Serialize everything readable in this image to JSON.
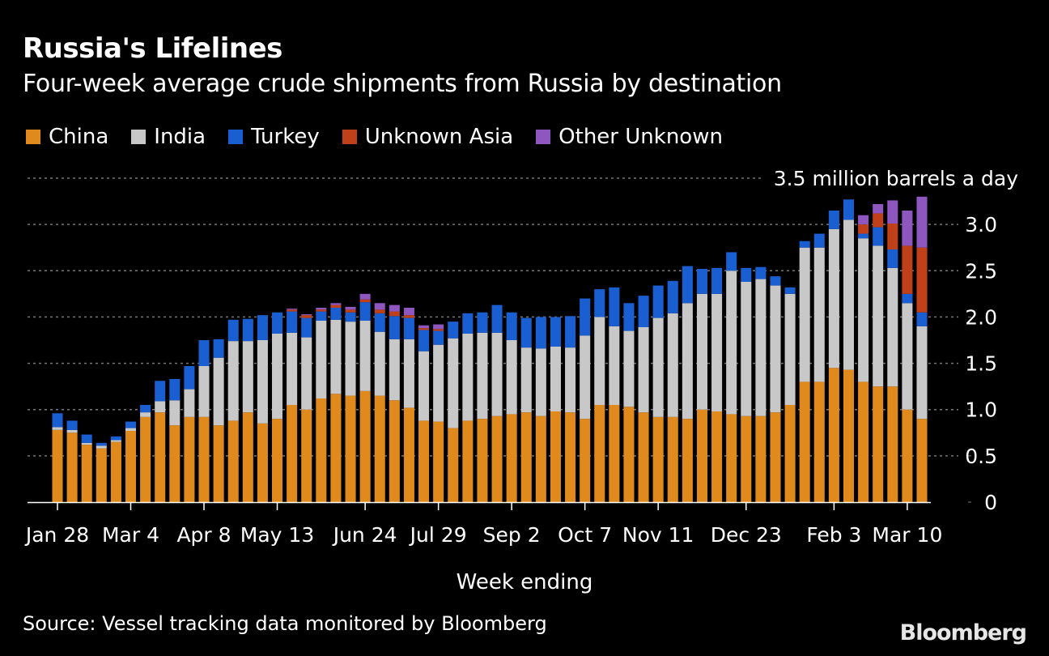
{
  "title": "Russia's Lifelines",
  "subtitle": "Four-week average crude shipments from Russia by destination",
  "source": "Source: Vessel tracking data monitored by Bloomberg",
  "brand": "Bloomberg",
  "colors": {
    "china": "#e08a1e",
    "india": "#c8c8c8",
    "turkey": "#1a5fd1",
    "unknown_asia": "#c0401a",
    "other_unknown": "#8e57c0",
    "grid": "#777777",
    "text": "#ffffff"
  },
  "chart_data": {
    "type": "bar",
    "stacked": true,
    "title": "Russia's Lifelines",
    "subtitle": "Four-week average crude shipments from Russia by destination",
    "xlabel": "Week ending",
    "ylabel": "",
    "unit_label": "3.5 million barrels a day",
    "ylim": [
      0,
      3.5
    ],
    "yticks": [
      0,
      0.5,
      1.0,
      1.5,
      2.0,
      2.5,
      3.0
    ],
    "ytick_labels": [
      "0",
      "0.5",
      "1.0",
      "1.5",
      "2.0",
      "2.5",
      "3.0"
    ],
    "grid": true,
    "legend_position": "top-left",
    "x_tick_labels": [
      {
        "index": 0,
        "label": "Jan 28"
      },
      {
        "index": 5,
        "label": "Mar 4"
      },
      {
        "index": 10,
        "label": "Apr 8"
      },
      {
        "index": 15,
        "label": "May 13"
      },
      {
        "index": 21,
        "label": "Jun 24"
      },
      {
        "index": 26,
        "label": "Jul 29"
      },
      {
        "index": 31,
        "label": "Sep 2"
      },
      {
        "index": 36,
        "label": "Oct 7"
      },
      {
        "index": 41,
        "label": "Nov 11"
      },
      {
        "index": 47,
        "label": "Dec 23"
      },
      {
        "index": 53,
        "label": "Feb 3"
      },
      {
        "index": 58,
        "label": "Mar 10"
      }
    ],
    "series": [
      {
        "name": "China",
        "key": "china",
        "values": [
          0.78,
          0.75,
          0.62,
          0.58,
          0.65,
          0.77,
          0.92,
          0.97,
          0.83,
          0.92,
          0.92,
          0.83,
          0.88,
          0.97,
          0.85,
          0.9,
          1.05,
          1.0,
          1.12,
          1.17,
          1.15,
          1.2,
          1.15,
          1.1,
          1.02,
          0.88,
          0.87,
          0.8,
          0.88,
          0.9,
          0.93,
          0.95,
          0.97,
          0.93,
          0.98,
          0.97,
          0.9,
          1.05,
          1.05,
          1.03,
          0.97,
          0.92,
          0.92,
          0.9,
          1.0,
          0.98,
          0.95,
          0.93,
          0.93,
          0.97,
          1.05,
          1.3,
          1.3,
          1.45,
          1.43,
          1.3,
          1.25,
          1.25,
          1.0,
          0.9
        ]
      },
      {
        "name": "India",
        "key": "india",
        "values": [
          0.03,
          0.03,
          0.02,
          0.03,
          0.02,
          0.03,
          0.05,
          0.12,
          0.27,
          0.3,
          0.55,
          0.73,
          0.86,
          0.77,
          0.9,
          0.92,
          0.78,
          0.78,
          0.84,
          0.8,
          0.8,
          0.76,
          0.69,
          0.66,
          0.74,
          0.75,
          0.83,
          0.97,
          0.94,
          0.93,
          0.9,
          0.8,
          0.7,
          0.73,
          0.7,
          0.7,
          0.9,
          0.95,
          0.85,
          0.82,
          0.92,
          1.07,
          1.12,
          1.25,
          1.25,
          1.27,
          1.55,
          1.45,
          1.48,
          1.37,
          1.2,
          1.45,
          1.45,
          1.5,
          1.62,
          1.55,
          1.52,
          1.28,
          1.15,
          1.0
        ]
      },
      {
        "name": "Turkey",
        "key": "turkey",
        "values": [
          0.15,
          0.1,
          0.09,
          0.03,
          0.04,
          0.07,
          0.08,
          0.22,
          0.23,
          0.25,
          0.28,
          0.2,
          0.23,
          0.24,
          0.27,
          0.23,
          0.23,
          0.21,
          0.1,
          0.13,
          0.1,
          0.2,
          0.2,
          0.25,
          0.23,
          0.23,
          0.15,
          0.18,
          0.22,
          0.22,
          0.3,
          0.3,
          0.32,
          0.34,
          0.32,
          0.34,
          0.4,
          0.3,
          0.42,
          0.3,
          0.34,
          0.35,
          0.35,
          0.4,
          0.27,
          0.28,
          0.2,
          0.15,
          0.13,
          0.1,
          0.07,
          0.07,
          0.15,
          0.2,
          0.22,
          0.05,
          0.2,
          0.2,
          0.1,
          0.15
        ]
      },
      {
        "name": "Unknown Asia",
        "key": "unknown_asia",
        "values": [
          0,
          0,
          0,
          0,
          0,
          0,
          0,
          0,
          0,
          0,
          0,
          0,
          0,
          0,
          0,
          0,
          0.02,
          0.03,
          0.02,
          0.03,
          0.03,
          0.03,
          0.04,
          0.05,
          0.03,
          0.02,
          0.02,
          0,
          0,
          0,
          0,
          0,
          0,
          0,
          0,
          0,
          0,
          0,
          0,
          0,
          0,
          0,
          0,
          0,
          0,
          0,
          0,
          0,
          0,
          0,
          0,
          0,
          0,
          0,
          0,
          0.1,
          0.15,
          0.28,
          0.52,
          0.7
        ]
      },
      {
        "name": "Other Unknown",
        "key": "other_unknown",
        "values": [
          0,
          0,
          0,
          0,
          0,
          0,
          0,
          0,
          0,
          0,
          0,
          0,
          0,
          0,
          0,
          0,
          0.01,
          0.01,
          0.02,
          0.02,
          0.03,
          0.06,
          0.07,
          0.07,
          0.08,
          0.03,
          0.05,
          0,
          0,
          0,
          0,
          0,
          0,
          0,
          0,
          0,
          0,
          0,
          0,
          0,
          0,
          0,
          0,
          0,
          0,
          0,
          0,
          0,
          0,
          0,
          0,
          0,
          0,
          0,
          0,
          0.1,
          0.1,
          0.25,
          0.38,
          0.55
        ]
      }
    ]
  }
}
